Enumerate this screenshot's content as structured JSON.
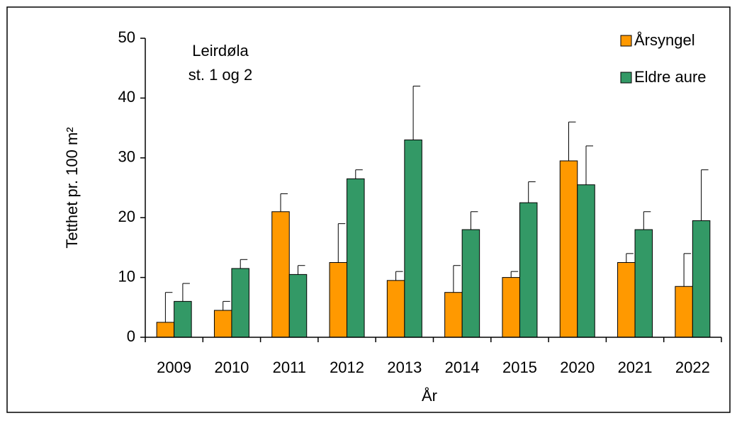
{
  "chart_data": {
    "type": "bar",
    "ylabel": "Tetthet pr. 100 m²",
    "xlabel": "År",
    "annotations": [
      "Leirdøla",
      "st. 1 og 2"
    ],
    "categories": [
      "2009",
      "2010",
      "2011",
      "2012",
      "2013",
      "2014",
      "2015",
      "2020",
      "2021",
      "2022"
    ],
    "series": [
      {
        "name": "Årsyngel",
        "color": "#ff9900",
        "values": [
          2.5,
          4.5,
          21,
          12.5,
          9.5,
          7.5,
          10,
          29.5,
          12.5,
          8.5
        ],
        "errors": [
          5,
          1.5,
          3,
          6.5,
          1.5,
          4.5,
          1,
          6.5,
          1.5,
          5.5
        ]
      },
      {
        "name": "Eldre aure",
        "color": "#339966",
        "values": [
          6,
          11.5,
          10.5,
          26.5,
          33,
          18,
          22.5,
          25.5,
          18,
          19.5
        ],
        "errors": [
          3,
          1.5,
          1.5,
          1.5,
          9,
          3,
          3.5,
          6.5,
          3,
          8.5
        ]
      }
    ],
    "ylim": [
      0,
      50
    ],
    "yticks": [
      0,
      10,
      20,
      30,
      40,
      50
    ],
    "grid": false,
    "legend": "upper right"
  }
}
